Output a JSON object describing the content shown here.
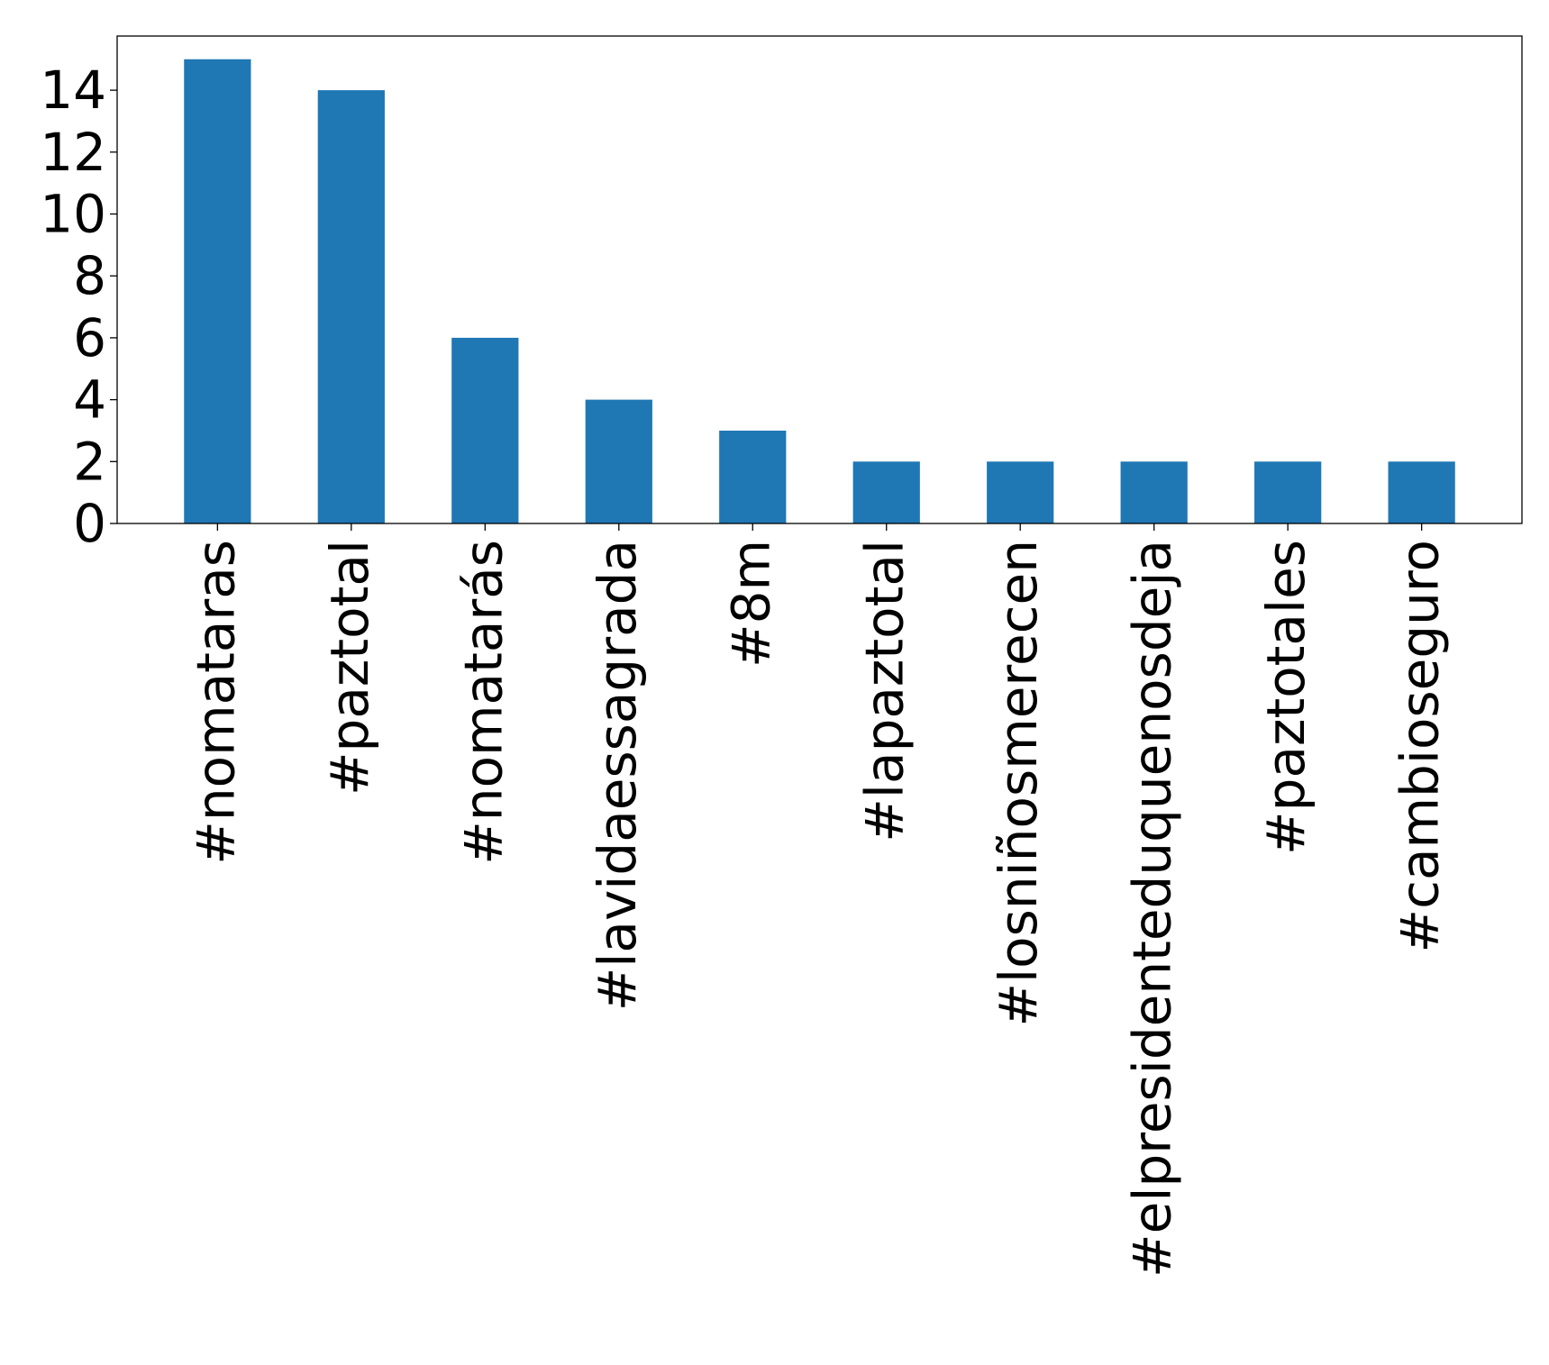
{
  "chart_data": {
    "type": "bar",
    "title": "",
    "xlabel": "",
    "ylabel": "",
    "categories": [
      "#nomataras",
      "#paztotal",
      "#nomatarás",
      "#lavidaessagrada",
      "#8m",
      "#lapaztotal",
      "#losniñosmerecen",
      "#elpresidenteduquenosdeja",
      "#paztotales",
      "#cambioseguro"
    ],
    "values": [
      15,
      14,
      6,
      4,
      3,
      2,
      2,
      2,
      2,
      2
    ],
    "ylim": [
      0,
      15.75
    ],
    "yticks": [
      0,
      2,
      4,
      6,
      8,
      10,
      12,
      14
    ],
    "grid": false,
    "legend": "none",
    "bar_color": "#1f77b4"
  }
}
